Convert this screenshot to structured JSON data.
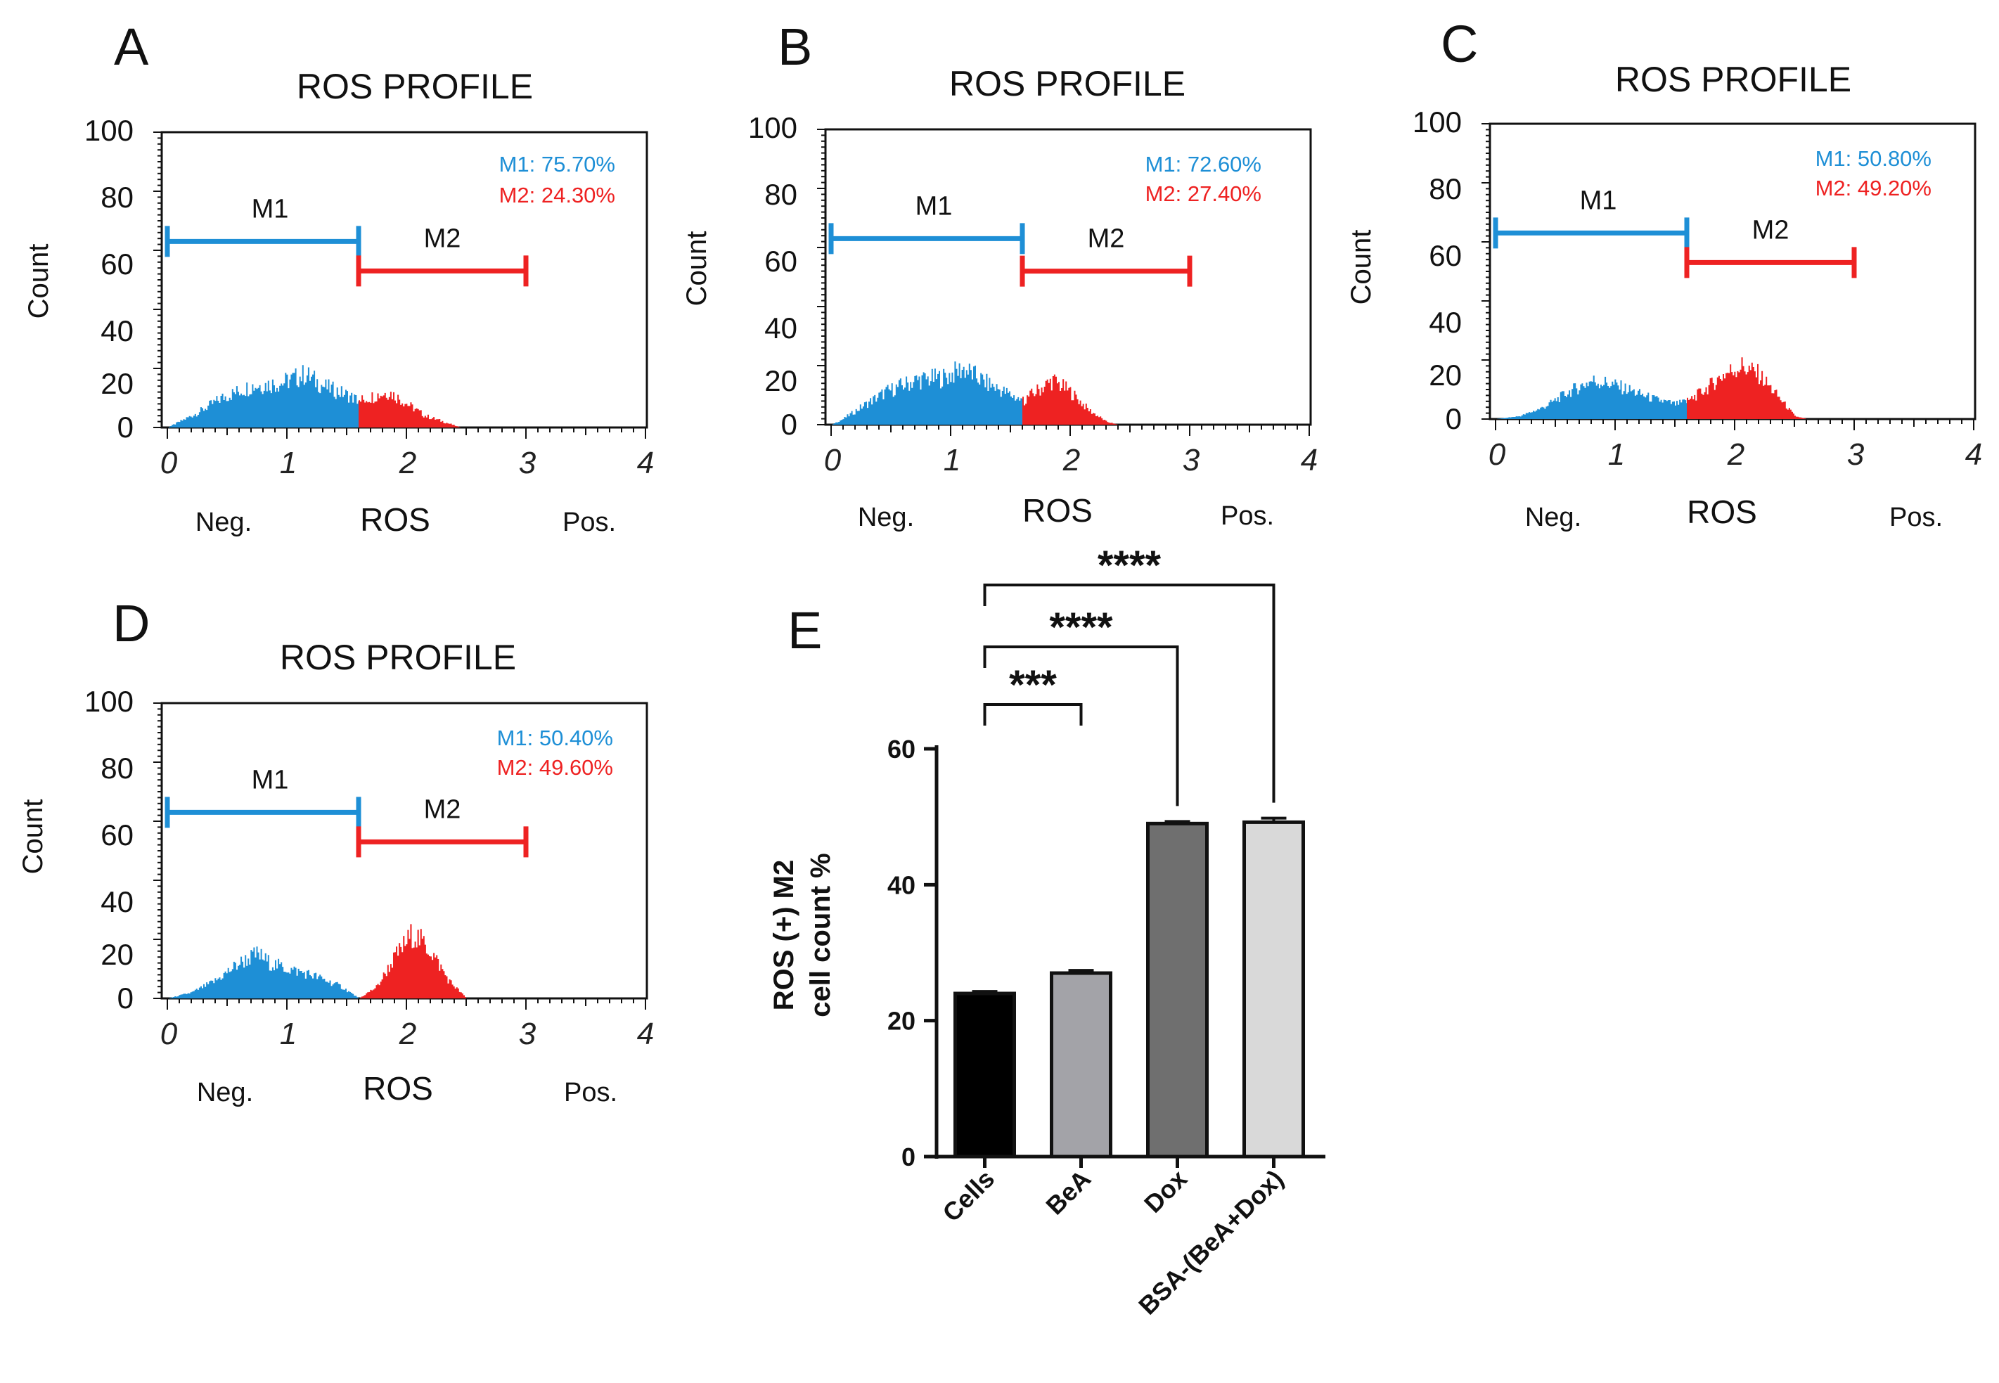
{
  "colors": {
    "m1": "#1e8fd6",
    "m2": "#ee2222",
    "axis": "#111111"
  },
  "chart_data": [
    {
      "type": "histogram",
      "panel": "A",
      "title": "ROS PROFILE",
      "ylabel": "Count",
      "xlabel": "ROS",
      "x_low_label": "Neg.",
      "x_high_label": "Pos.",
      "ylim": [
        0,
        100
      ],
      "xlim": [
        0,
        4
      ],
      "yticks": [
        "0",
        "20",
        "40",
        "60",
        "80",
        "100"
      ],
      "xticks": [
        "0",
        "1",
        "2",
        "3",
        "4"
      ],
      "m1_label": "M1",
      "m1_range": [
        0,
        1.6
      ],
      "m1_level": 63,
      "m2_label": "M2",
      "m2_range": [
        1.6,
        3.0
      ],
      "m2_level": 53,
      "m1_stat": "M1: 75.70%",
      "m2_stat": "M2: 24.30%",
      "m1_profile": [
        [
          0.0,
          0
        ],
        [
          0.1,
          2
        ],
        [
          0.25,
          5
        ],
        [
          0.45,
          10
        ],
        [
          0.7,
          14
        ],
        [
          0.95,
          15
        ],
        [
          1.15,
          18
        ],
        [
          1.3,
          14
        ],
        [
          1.5,
          11
        ],
        [
          1.6,
          9
        ]
      ],
      "m2_profile": [
        [
          1.6,
          9
        ],
        [
          1.75,
          11
        ],
        [
          1.85,
          12
        ],
        [
          2.0,
          8
        ],
        [
          2.15,
          4
        ],
        [
          2.3,
          2
        ],
        [
          2.45,
          0
        ]
      ]
    },
    {
      "type": "histogram",
      "panel": "B",
      "title": "ROS PROFILE",
      "ylabel": "Count",
      "xlabel": "ROS",
      "x_low_label": "Neg.",
      "x_high_label": "Pos.",
      "ylim": [
        0,
        100
      ],
      "xlim": [
        0,
        4
      ],
      "yticks": [
        "0",
        "20",
        "40",
        "60",
        "80",
        "100"
      ],
      "xticks": [
        "0",
        "1",
        "2",
        "3",
        "4"
      ],
      "m1_label": "M1",
      "m1_range": [
        0,
        1.6
      ],
      "m1_level": 63,
      "m2_label": "M2",
      "m2_range": [
        1.6,
        3.0
      ],
      "m2_level": 52,
      "m1_stat": "M1: 72.60%",
      "m2_stat": "M2: 27.40%",
      "m1_profile": [
        [
          0.0,
          0
        ],
        [
          0.1,
          2
        ],
        [
          0.25,
          6
        ],
        [
          0.45,
          11
        ],
        [
          0.7,
          15
        ],
        [
          0.95,
          16
        ],
        [
          1.1,
          19
        ],
        [
          1.3,
          14
        ],
        [
          1.5,
          10
        ],
        [
          1.6,
          8
        ]
      ],
      "m2_profile": [
        [
          1.6,
          8
        ],
        [
          1.7,
          11
        ],
        [
          1.85,
          15
        ],
        [
          2.0,
          11
        ],
        [
          2.15,
          5
        ],
        [
          2.3,
          1
        ],
        [
          2.4,
          0
        ]
      ]
    },
    {
      "type": "histogram",
      "panel": "C",
      "title": "ROS PROFILE",
      "ylabel": "Count",
      "xlabel": "ROS",
      "x_low_label": "Neg.",
      "x_high_label": "Pos.",
      "ylim": [
        0,
        100
      ],
      "xlim": [
        0,
        4
      ],
      "yticks": [
        "0",
        "20",
        "40",
        "60",
        "80",
        "100"
      ],
      "xticks": [
        "0",
        "1",
        "2",
        "3",
        "4"
      ],
      "m1_label": "M1",
      "m1_range": [
        0,
        1.6
      ],
      "m1_level": 63,
      "m2_label": "M2",
      "m2_range": [
        1.6,
        3.0
      ],
      "m2_level": 53,
      "m1_stat": "M1: 50.80%",
      "m2_stat": "M2: 49.20%",
      "m1_profile": [
        [
          0.0,
          0
        ],
        [
          0.2,
          1
        ],
        [
          0.4,
          4
        ],
        [
          0.6,
          9
        ],
        [
          0.8,
          13
        ],
        [
          0.95,
          12
        ],
        [
          1.1,
          10
        ],
        [
          1.3,
          7
        ],
        [
          1.5,
          5
        ],
        [
          1.6,
          6
        ]
      ],
      "m2_profile": [
        [
          1.6,
          6
        ],
        [
          1.75,
          10
        ],
        [
          1.9,
          15
        ],
        [
          2.05,
          18
        ],
        [
          2.2,
          15
        ],
        [
          2.35,
          8
        ],
        [
          2.5,
          1
        ],
        [
          2.6,
          0
        ]
      ]
    },
    {
      "type": "histogram",
      "panel": "D",
      "title": "ROS PROFILE",
      "ylabel": "Count",
      "xlabel": "ROS",
      "x_low_label": "Neg.",
      "x_high_label": "Pos.",
      "ylim": [
        0,
        100
      ],
      "xlim": [
        0,
        4
      ],
      "yticks": [
        "0",
        "20",
        "40",
        "60",
        "80",
        "100"
      ],
      "xticks": [
        "0",
        "1",
        "2",
        "3",
        "4"
      ],
      "m1_label": "M1",
      "m1_range": [
        0,
        1.6
      ],
      "m1_level": 63,
      "m2_label": "M2",
      "m2_range": [
        1.6,
        3.0
      ],
      "m2_level": 53,
      "m1_stat": "M1: 50.40%",
      "m2_stat": "M2: 49.60%",
      "m1_profile": [
        [
          0.0,
          0
        ],
        [
          0.2,
          2
        ],
        [
          0.4,
          6
        ],
        [
          0.6,
          12
        ],
        [
          0.75,
          15
        ],
        [
          0.85,
          12
        ],
        [
          1.0,
          10
        ],
        [
          1.2,
          8
        ],
        [
          1.45,
          4
        ],
        [
          1.6,
          0
        ]
      ],
      "m2_profile": [
        [
          1.6,
          0
        ],
        [
          1.75,
          4
        ],
        [
          1.9,
          14
        ],
        [
          2.05,
          22
        ],
        [
          2.2,
          16
        ],
        [
          2.35,
          6
        ],
        [
          2.5,
          0
        ]
      ]
    },
    {
      "type": "bar",
      "panel": "E",
      "ylabel_line1": "ROS (+) M2",
      "ylabel_line2": "cell count %",
      "ylim": [
        0,
        60
      ],
      "yticks": [
        "0",
        "20",
        "40",
        "60"
      ],
      "categories": [
        "Cells",
        "BeA",
        "Dox",
        "BSA-(BeA+Dox)"
      ],
      "values": [
        24.0,
        27.0,
        49.0,
        49.2
      ],
      "errors": [
        0.3,
        0.4,
        0.3,
        0.6
      ],
      "bar_colors": [
        "#000000",
        "#a3a3a8",
        "#6f6f6f",
        "#d9d9d9"
      ],
      "significance": [
        {
          "from": "Cells",
          "to": "BeA",
          "label": "***"
        },
        {
          "from": "Cells",
          "to": "Dox",
          "label": "****"
        },
        {
          "from": "Cells",
          "to": "BSA-(BeA+Dox)",
          "label": "****"
        }
      ]
    }
  ]
}
